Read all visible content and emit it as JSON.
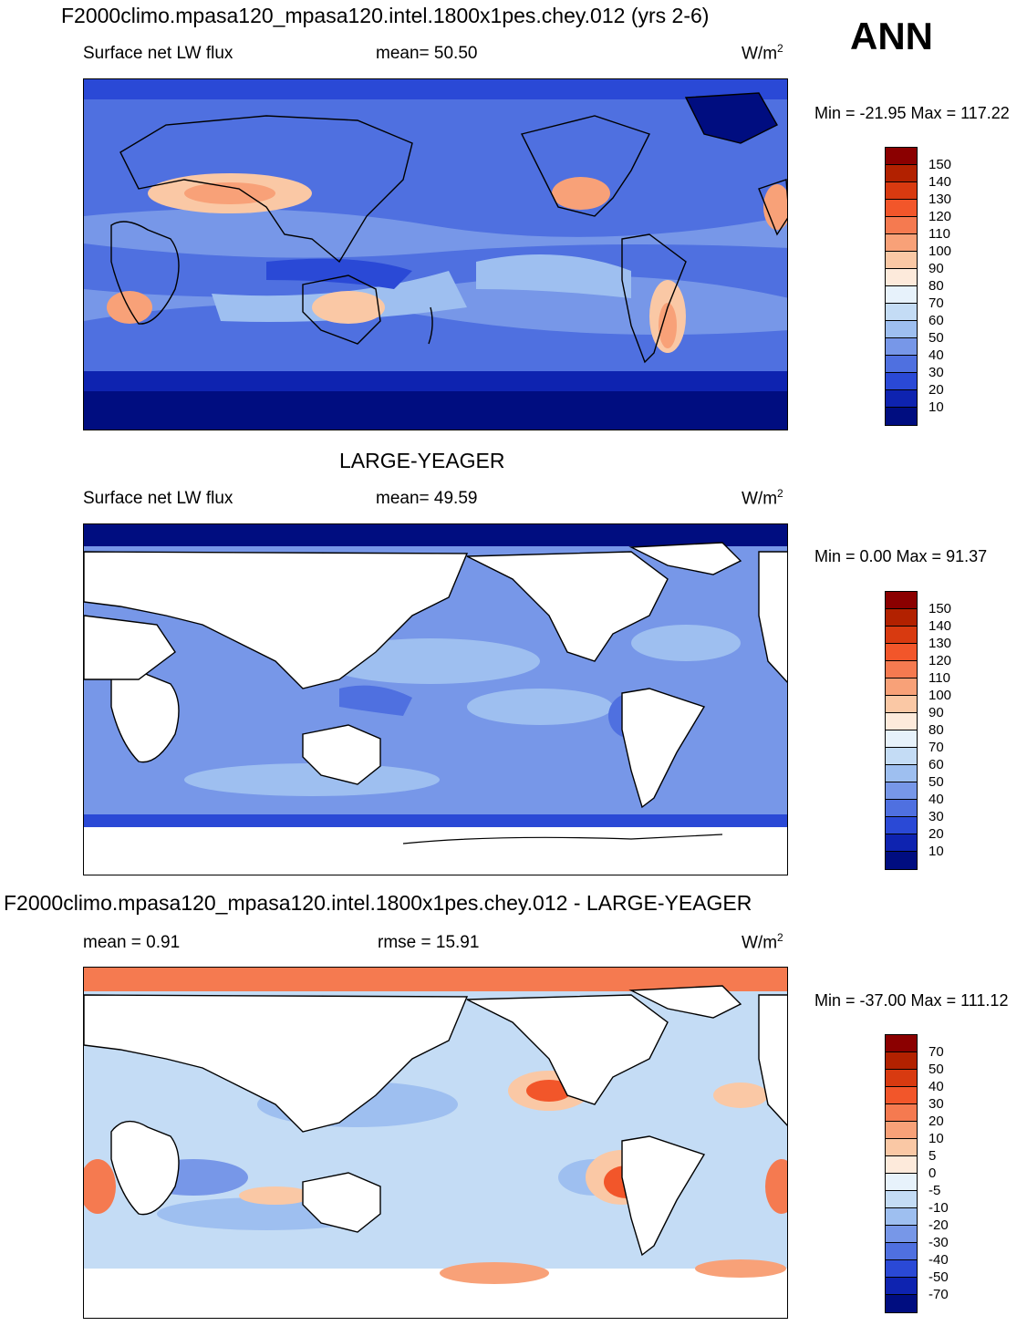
{
  "season": "ANN",
  "units": "W/m",
  "units_sup": "2",
  "panels": [
    {
      "title": "F2000climo.mpasa120_mpasa120.intel.1800x1pes.chey.012 (yrs 2-6)",
      "left_label": "Surface net LW flux",
      "center_label": "mean=  50.50",
      "minmax": "Min = -21.95 Max = 117.22",
      "colorbar_labels": [
        "150",
        "140",
        "130",
        "120",
        "110",
        "100",
        "90",
        "80",
        "70",
        "60",
        "50",
        "40",
        "30",
        "20",
        "10"
      ],
      "colorbar_colors": [
        "#8b0000",
        "#b22100",
        "#d83a10",
        "#f2562a",
        "#f57a50",
        "#f8a178",
        "#fac8a5",
        "#fdeadb",
        "#e7f2fb",
        "#c4dcf5",
        "#9ebff0",
        "#7797e8",
        "#4f70e0",
        "#2a49d6",
        "#0e23b0",
        "#000d80"
      ]
    },
    {
      "title": "LARGE-YEAGER",
      "left_label": "Surface net LW flux",
      "center_label": "mean=  49.59",
      "minmax": "Min =   0.00 Max =  91.37",
      "colorbar_labels": [
        "150",
        "140",
        "130",
        "120",
        "110",
        "100",
        "90",
        "80",
        "70",
        "60",
        "50",
        "40",
        "30",
        "20",
        "10"
      ],
      "colorbar_colors": [
        "#8b0000",
        "#b22100",
        "#d83a10",
        "#f2562a",
        "#f57a50",
        "#f8a178",
        "#fac8a5",
        "#fdeadb",
        "#e7f2fb",
        "#c4dcf5",
        "#9ebff0",
        "#7797e8",
        "#4f70e0",
        "#2a49d6",
        "#0e23b0",
        "#000d80"
      ]
    },
    {
      "title": "F2000climo.mpasa120_mpasa120.intel.1800x1pes.chey.012 - LARGE-YEAGER",
      "left_label": "mean =   0.91",
      "center_label": "rmse =  15.91",
      "minmax": "Min = -37.00 Max = 111.12",
      "colorbar_labels": [
        "70",
        "50",
        "40",
        "30",
        "20",
        "10",
        "5",
        "0",
        "-5",
        "-10",
        "-20",
        "-30",
        "-40",
        "-50",
        "-70"
      ],
      "colorbar_colors": [
        "#8b0000",
        "#b22100",
        "#d83a10",
        "#f2562a",
        "#f57a50",
        "#f8a178",
        "#fac8a5",
        "#fdeadb",
        "#e7f2fb",
        "#c4dcf5",
        "#9ebff0",
        "#7797e8",
        "#4f70e0",
        "#2a49d6",
        "#0e23b0",
        "#000d80"
      ]
    }
  ]
}
